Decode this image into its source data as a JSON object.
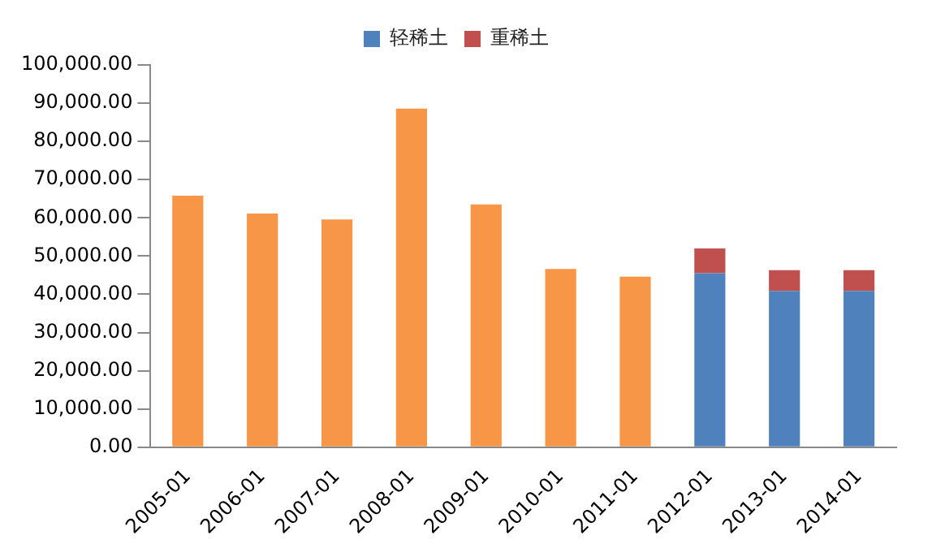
{
  "chart_data": {
    "type": "bar",
    "stacked": true,
    "categories": [
      "2005-01",
      "2006-01",
      "2007-01",
      "2008-01",
      "2009-01",
      "2010-01",
      "2011-01",
      "2012-01",
      "2013-01",
      "2014-01"
    ],
    "series": [
      {
        "color": "#f79646",
        "values": [
          65800,
          61100,
          59600,
          88600,
          63500,
          46600,
          44600,
          null,
          null,
          null
        ]
      },
      {
        "name": "轻稀土",
        "color": "#4f81bd",
        "values": [
          null,
          null,
          null,
          null,
          null,
          null,
          null,
          45500,
          40900,
          40900
        ]
      },
      {
        "name": "重稀土",
        "color": "#c0504d",
        "values": [
          null,
          null,
          null,
          null,
          null,
          null,
          null,
          6500,
          5400,
          5400
        ]
      }
    ],
    "ylim": [
      0,
      100000
    ],
    "yticks": [
      {
        "value": 0,
        "label": "0.00"
      },
      {
        "value": 10000,
        "label": "10,000.00"
      },
      {
        "value": 20000,
        "label": "20,000.00"
      },
      {
        "value": 30000,
        "label": "30,000.00"
      },
      {
        "value": 40000,
        "label": "40,000.00"
      },
      {
        "value": 50000,
        "label": "50,000.00"
      },
      {
        "value": 60000,
        "label": "60,000.00"
      },
      {
        "value": 70000,
        "label": "70,000.00"
      },
      {
        "value": 80000,
        "label": "80,000.00"
      },
      {
        "value": 90000,
        "label": "90,000.00"
      },
      {
        "value": 100000,
        "label": "100,000.00"
      }
    ],
    "grid": false,
    "legend": "top"
  }
}
